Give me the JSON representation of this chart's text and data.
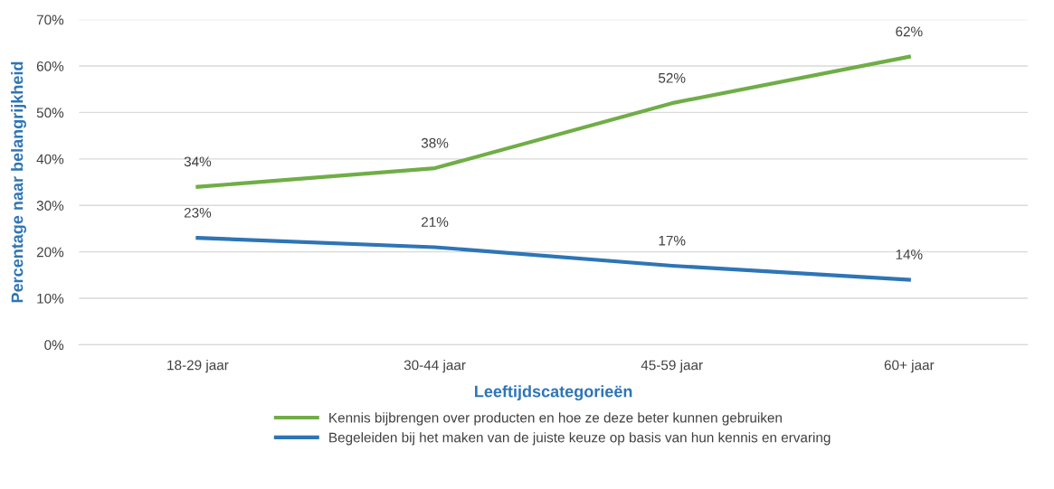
{
  "chart_data": {
    "type": "line",
    "xlabel": "Leeftijdscategorieën",
    "ylabel": "Percentage naar belangrijkheid",
    "categories": [
      "18-29 jaar",
      "30-44 jaar",
      "45-59 jaar",
      "60+ jaar"
    ],
    "series": [
      {
        "name": "Kennis bijbrengen over producten en hoe ze deze beter kunnen gebruiken",
        "color": "#70ad47",
        "values": [
          34,
          38,
          52,
          62
        ],
        "value_labels": [
          "34%",
          "38%",
          "52%",
          "62%"
        ]
      },
      {
        "name": "Begeleiden bij het maken van de juiste keuze op basis van hun kennis en ervaring",
        "color": "#2e75b6",
        "values": [
          23,
          21,
          17,
          14
        ],
        "value_labels": [
          "23%",
          "21%",
          "17%",
          "14%"
        ]
      }
    ],
    "ylim": [
      0,
      70
    ],
    "yticks": [
      {
        "value": 0,
        "label": "0%"
      },
      {
        "value": 10,
        "label": "10%"
      },
      {
        "value": 20,
        "label": "20%"
      },
      {
        "value": 30,
        "label": "30%"
      },
      {
        "value": 40,
        "label": "40%"
      },
      {
        "value": 50,
        "label": "50%"
      },
      {
        "value": 60,
        "label": "60%"
      },
      {
        "value": 70,
        "label": "70%"
      }
    ],
    "grid": "y",
    "legend": "bottom",
    "marker": "none",
    "line_style": "solid"
  }
}
